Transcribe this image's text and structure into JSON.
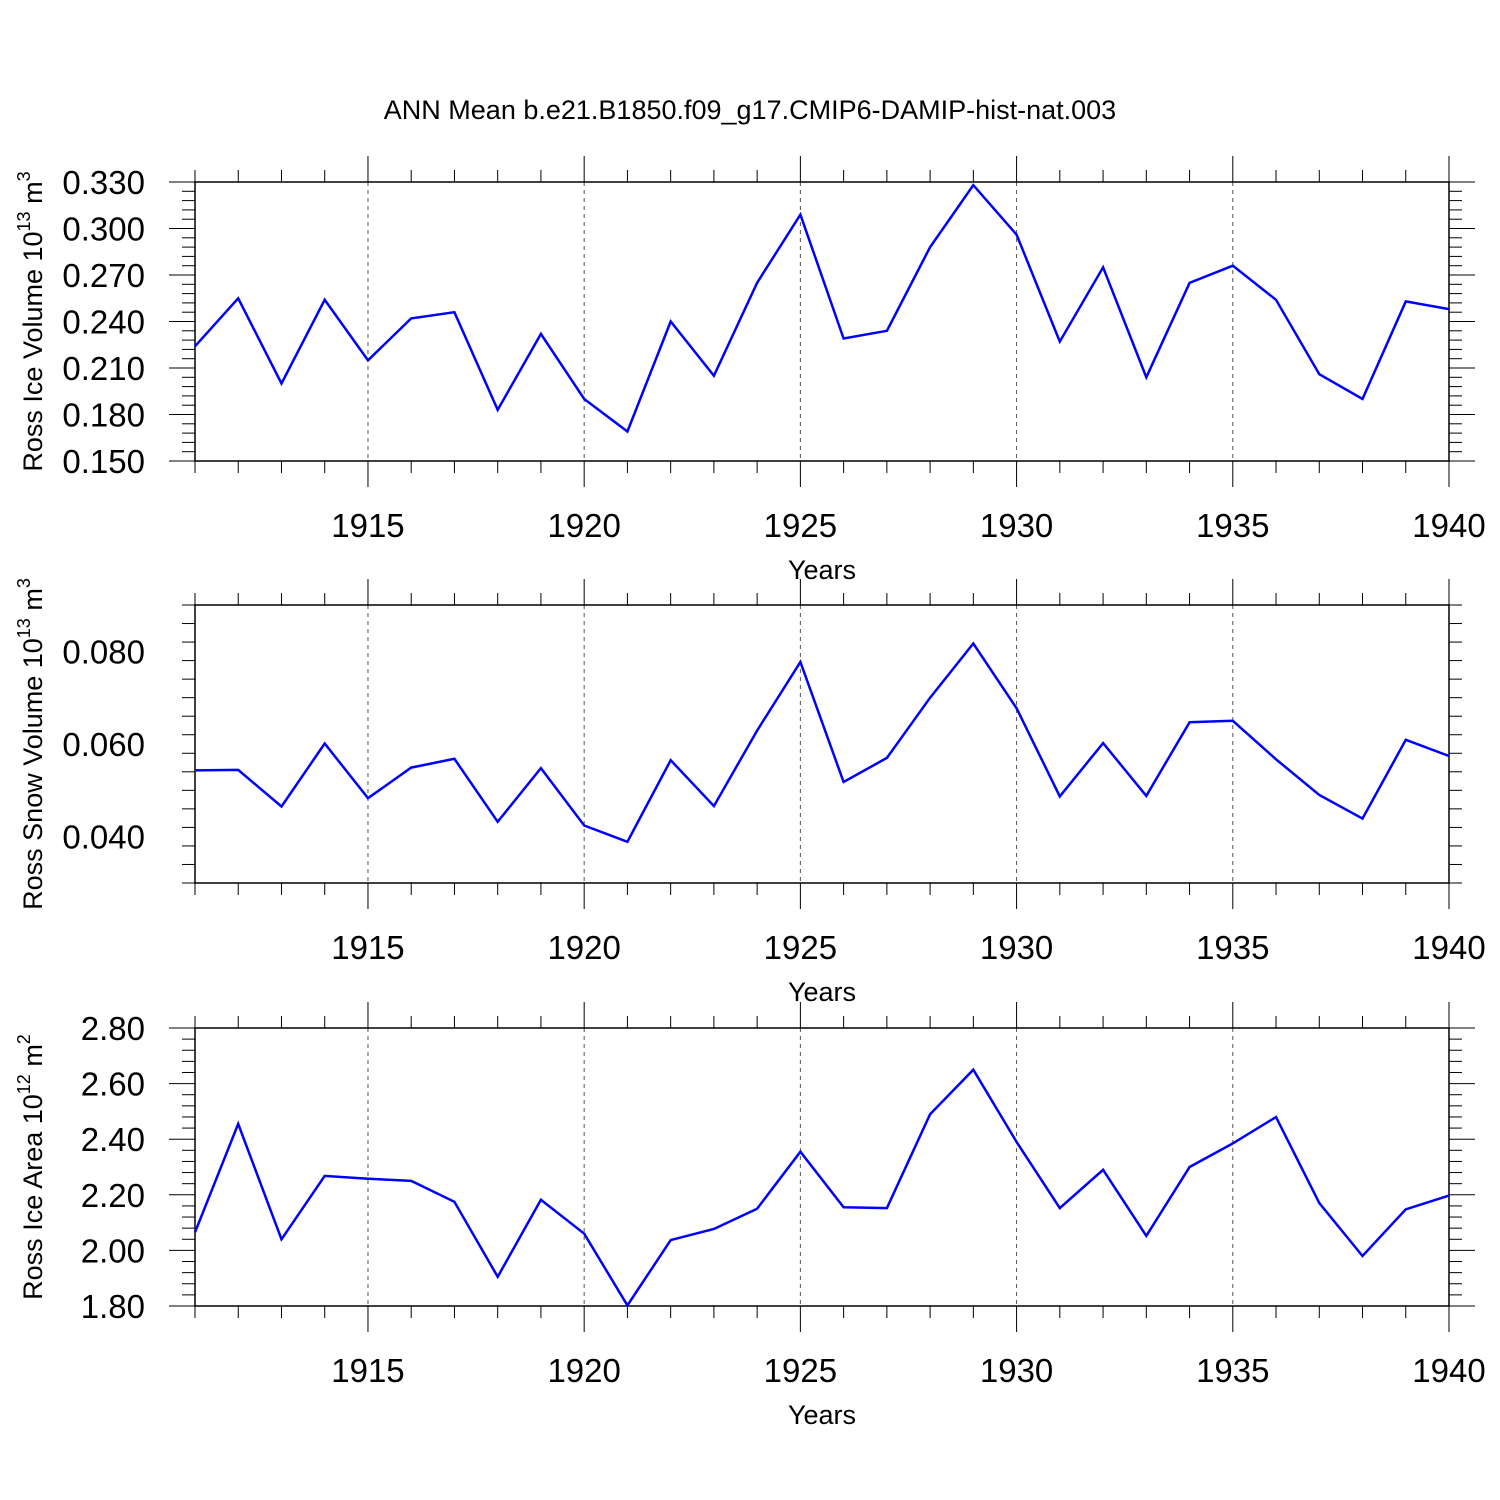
{
  "title": "ANN Mean b.e21.B1850.f09_g17.CMIP6-DAMIP-hist-nat.003",
  "line_color": "#0000ff",
  "chart_data": [
    {
      "type": "line",
      "xlabel": "Years",
      "ylabel": "Ross Ice Volume 10",
      "ylabel_exp": "13",
      "ylabel_unit": " m",
      "ylabel_unit_exp": "3",
      "xlim": [
        1911,
        1940
      ],
      "ylim": [
        0.15,
        0.33
      ],
      "x_ticks": [
        "1915",
        "1920",
        "1925",
        "1930",
        "1935",
        "1940"
      ],
      "y_ticks": [
        "0.150",
        "0.180",
        "0.210",
        "0.240",
        "0.270",
        "0.300",
        "0.330"
      ],
      "grid": "vertical dashed at labeled years",
      "x": [
        1911,
        1912,
        1913,
        1914,
        1915,
        1916,
        1917,
        1918,
        1919,
        1920,
        1921,
        1922,
        1923,
        1924,
        1925,
        1926,
        1927,
        1928,
        1929,
        1930,
        1931,
        1932,
        1933,
        1934,
        1935,
        1936,
        1937,
        1938,
        1939,
        1940
      ],
      "series": [
        {
          "values": [
            0.224,
            0.255,
            0.2,
            0.254,
            0.215,
            0.242,
            0.246,
            0.183,
            0.232,
            0.19,
            0.169,
            0.24,
            0.205,
            0.265,
            0.309,
            0.229,
            0.234,
            0.288,
            0.328,
            0.296,
            0.227,
            0.275,
            0.204,
            0.265,
            0.276,
            0.254,
            0.206,
            0.19,
            0.253,
            0.248
          ]
        }
      ]
    },
    {
      "type": "line",
      "xlabel": "Years",
      "ylabel": "Ross Snow Volume 10",
      "ylabel_exp": "13",
      "ylabel_unit": " m",
      "ylabel_unit_exp": "3",
      "xlim": [
        1911,
        1940
      ],
      "ylim": [
        0.03,
        0.09
      ],
      "x_ticks": [
        "1915",
        "1920",
        "1925",
        "1930",
        "1935",
        "1940"
      ],
      "y_ticks": [
        "0.040",
        "0.060",
        "0.080"
      ],
      "grid": "vertical dashed at labeled years",
      "x": [
        1911,
        1912,
        1913,
        1914,
        1915,
        1916,
        1917,
        1918,
        1919,
        1920,
        1921,
        1922,
        1923,
        1924,
        1925,
        1926,
        1927,
        1928,
        1929,
        1930,
        1931,
        1932,
        1933,
        1934,
        1935,
        1936,
        1937,
        1938,
        1939,
        1940
      ],
      "series": [
        {
          "values": [
            0.0543,
            0.0544,
            0.0465,
            0.0601,
            0.0483,
            0.0549,
            0.0568,
            0.0432,
            0.0548,
            0.0424,
            0.0389,
            0.0565,
            0.0466,
            0.0629,
            0.0777,
            0.0518,
            0.057,
            0.07,
            0.0817,
            0.0677,
            0.0487,
            0.0602,
            0.0488,
            0.0647,
            0.065,
            0.0567,
            0.049,
            0.0439,
            0.0609,
            0.0574
          ]
        }
      ]
    },
    {
      "type": "line",
      "xlabel": "Years",
      "ylabel": "Ross Ice Area 10",
      "ylabel_exp": "12",
      "ylabel_unit": " m",
      "ylabel_unit_exp": "2",
      "xlim": [
        1911,
        1940
      ],
      "ylim": [
        1.8,
        2.8
      ],
      "x_ticks": [
        "1915",
        "1920",
        "1925",
        "1930",
        "1935",
        "1940"
      ],
      "y_ticks": [
        "1.80",
        "2.00",
        "2.20",
        "2.40",
        "2.60",
        "2.80"
      ],
      "grid": "vertical dashed at labeled years",
      "x": [
        1911,
        1912,
        1913,
        1914,
        1915,
        1916,
        1917,
        1918,
        1919,
        1920,
        1921,
        1922,
        1923,
        1924,
        1925,
        1926,
        1927,
        1928,
        1929,
        1930,
        1931,
        1932,
        1933,
        1934,
        1935,
        1936,
        1937,
        1938,
        1939,
        1940
      ],
      "series": [
        {
          "values": [
            2.065,
            2.455,
            2.04,
            2.268,
            2.258,
            2.25,
            2.175,
            1.905,
            2.182,
            2.06,
            1.802,
            2.037,
            2.077,
            2.15,
            2.355,
            2.155,
            2.152,
            2.49,
            2.65,
            2.39,
            2.152,
            2.29,
            2.052,
            2.3,
            2.385,
            2.48,
            2.17,
            1.98,
            2.148,
            2.197
          ]
        }
      ]
    }
  ]
}
